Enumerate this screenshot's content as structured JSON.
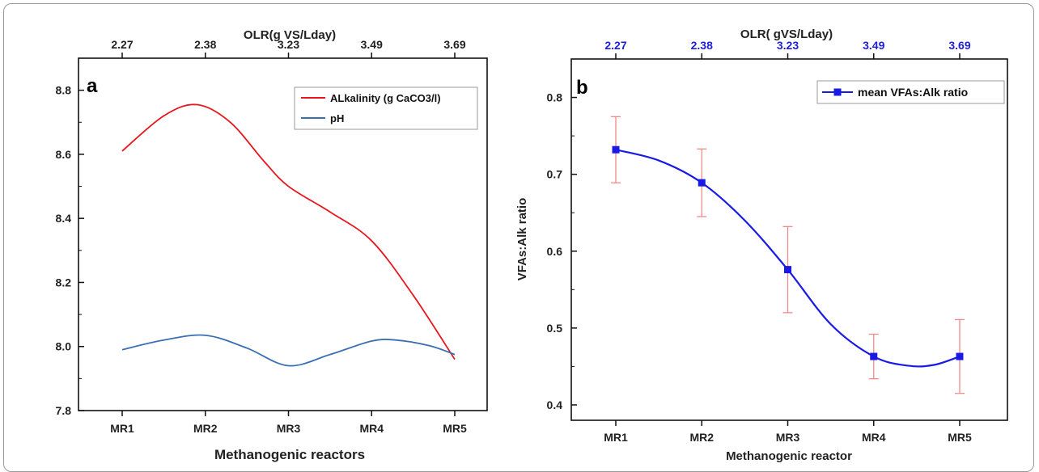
{
  "chart_data": [
    {
      "type": "line",
      "panel_label": "a",
      "categories": [
        "MR1",
        "MR2",
        "MR3",
        "MR4",
        "MR5"
      ],
      "top_axis": {
        "label": "OLR(g VS/Lday)",
        "ticks": [
          "2.27",
          "2.38",
          "3.23",
          "3.49",
          "3.69"
        ]
      },
      "xlabel": "Methanogenic reactors",
      "ylabel": "",
      "ylim": [
        7.8,
        8.9
      ],
      "yticks": [
        "7.8",
        "8.0",
        "8.2",
        "8.4",
        "8.6",
        "8.8"
      ],
      "legend_position": "top-right",
      "series": [
        {
          "name": "ALkalinity (g CaCO3/l)",
          "color": "#e8161c",
          "curve_x": [
            1,
            1.5,
            1.9,
            2.3,
            2.7,
            3.0,
            3.5,
            4.0,
            4.5,
            5.0
          ],
          "curve_y": [
            8.61,
            8.72,
            8.755,
            8.7,
            8.58,
            8.5,
            8.42,
            8.33,
            8.16,
            7.96
          ]
        },
        {
          "name": "pH",
          "color": "#3a6fb2",
          "curve_x": [
            1,
            1.5,
            2.0,
            2.5,
            3.0,
            3.5,
            4.0,
            4.3,
            4.7,
            5.0
          ],
          "curve_y": [
            7.99,
            8.02,
            8.035,
            7.995,
            7.94,
            7.975,
            8.017,
            8.02,
            8.002,
            7.975
          ]
        }
      ]
    },
    {
      "type": "line",
      "panel_label": "b",
      "categories": [
        "MR1",
        "MR2",
        "MR3",
        "MR4",
        "MR5"
      ],
      "top_axis": {
        "label": "OLR( gVS/Lday)",
        "ticks": [
          "2.27",
          "2.38",
          "3.23",
          "3.49",
          "3.69"
        ]
      },
      "xlabel": "Methanogenic reactor",
      "ylabel": "VFAs:Alk ratio",
      "ylim": [
        0.38,
        0.85
      ],
      "yticks": [
        "0.4",
        "0.5",
        "0.6",
        "0.7",
        "0.8"
      ],
      "legend_position": "top-right",
      "series": [
        {
          "name": "mean VFAs:Alk ratio",
          "color": "#1a1ae6",
          "errorbar_color": "#ef8a8a",
          "values": [
            0.732,
            0.689,
            0.576,
            0.463,
            0.463
          ],
          "errors": [
            0.043,
            0.044,
            0.056,
            0.029,
            0.048
          ],
          "curve_x": [
            1,
            1.5,
            2.0,
            2.5,
            3.0,
            3.5,
            4.0,
            4.4,
            4.7,
            5.0
          ],
          "curve_y": [
            0.732,
            0.718,
            0.689,
            0.64,
            0.576,
            0.505,
            0.463,
            0.451,
            0.452,
            0.463
          ]
        }
      ]
    }
  ]
}
